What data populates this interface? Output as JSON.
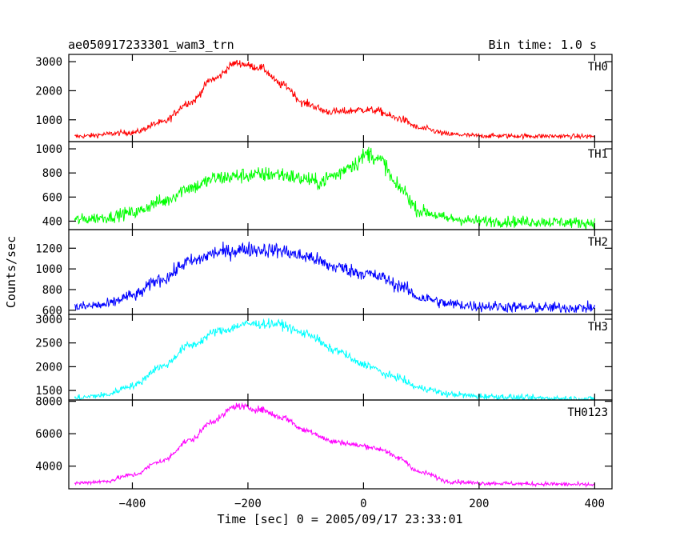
{
  "header": {
    "title": "ae050917233301_wam3_trn",
    "bin_time": "Bin time: 1.0 s"
  },
  "chart_data": {
    "type": "line",
    "xlabel": "Time [sec] 0 = 2005/09/17 23:33:01",
    "ylabel": "Counts/sec",
    "xlim": [
      -510,
      430
    ],
    "x_ticks": [
      -400,
      -200,
      0,
      200,
      400
    ],
    "x_tick_labels": [
      "−400",
      "−200",
      "0",
      "200",
      "400"
    ],
    "x_step": 1.0,
    "x_start": -500,
    "x_end": 400,
    "grid": false,
    "series": [
      {
        "name": "TH0",
        "color": "#ff0000",
        "ylim": [
          250,
          3250
        ],
        "y_ticks": [
          1000,
          2000,
          3000
        ],
        "noise_amplitude": 70,
        "profile": [
          [
            -500,
            430
          ],
          [
            -400,
            560
          ],
          [
            -350,
            900
          ],
          [
            -300,
            1600
          ],
          [
            -260,
            2400
          ],
          [
            -220,
            2950
          ],
          [
            -180,
            2800
          ],
          [
            -140,
            2200
          ],
          [
            -100,
            1550
          ],
          [
            -60,
            1280
          ],
          [
            -40,
            1280
          ],
          [
            0,
            1350
          ],
          [
            20,
            1320
          ],
          [
            60,
            1050
          ],
          [
            100,
            700
          ],
          [
            150,
            500
          ],
          [
            200,
            450
          ],
          [
            300,
            440
          ],
          [
            400,
            430
          ]
        ]
      },
      {
        "name": "TH1",
        "color": "#00ff00",
        "ylim": [
          330,
          1060
        ],
        "y_ticks": [
          400,
          600,
          800,
          1000
        ],
        "noise_amplitude": 40,
        "profile": [
          [
            -500,
            410
          ],
          [
            -450,
            430
          ],
          [
            -400,
            470
          ],
          [
            -350,
            560
          ],
          [
            -300,
            680
          ],
          [
            -250,
            760
          ],
          [
            -200,
            780
          ],
          [
            -150,
            790
          ],
          [
            -100,
            750
          ],
          [
            -80,
            720
          ],
          [
            -50,
            780
          ],
          [
            -20,
            870
          ],
          [
            10,
            960
          ],
          [
            30,
            900
          ],
          [
            60,
            680
          ],
          [
            100,
            480
          ],
          [
            150,
            420
          ],
          [
            200,
            400
          ],
          [
            300,
            395
          ],
          [
            400,
            385
          ]
        ]
      },
      {
        "name": "TH2",
        "color": "#0000ff",
        "ylim": [
          560,
          1380
        ],
        "y_ticks": [
          600,
          800,
          1000,
          1200
        ],
        "noise_amplitude": 45,
        "profile": [
          [
            -500,
            630
          ],
          [
            -450,
            650
          ],
          [
            -400,
            740
          ],
          [
            -350,
            900
          ],
          [
            -300,
            1070
          ],
          [
            -250,
            1160
          ],
          [
            -200,
            1190
          ],
          [
            -150,
            1180
          ],
          [
            -100,
            1120
          ],
          [
            -50,
            1020
          ],
          [
            0,
            960
          ],
          [
            30,
            920
          ],
          [
            60,
            840
          ],
          [
            100,
            720
          ],
          [
            150,
            660
          ],
          [
            200,
            640
          ],
          [
            300,
            625
          ],
          [
            400,
            625
          ]
        ]
      },
      {
        "name": "TH3",
        "color": "#00ffff",
        "ylim": [
          1300,
          3100
        ],
        "y_ticks": [
          1500,
          2000,
          2500,
          3000
        ],
        "noise_amplitude": 55,
        "profile": [
          [
            -500,
            1340
          ],
          [
            -450,
            1400
          ],
          [
            -400,
            1600
          ],
          [
            -350,
            2000
          ],
          [
            -300,
            2450
          ],
          [
            -250,
            2750
          ],
          [
            -200,
            2900
          ],
          [
            -150,
            2900
          ],
          [
            -100,
            2700
          ],
          [
            -50,
            2350
          ],
          [
            0,
            2050
          ],
          [
            50,
            1800
          ],
          [
            100,
            1550
          ],
          [
            150,
            1420
          ],
          [
            200,
            1380
          ],
          [
            300,
            1340
          ],
          [
            400,
            1320
          ]
        ]
      },
      {
        "name": "TH0123",
        "color": "#ff00ff",
        "ylim": [
          2600,
          8080
        ],
        "y_ticks": [
          4000,
          6000,
          8000
        ],
        "noise_amplitude": 110,
        "profile": [
          [
            -500,
            2950
          ],
          [
            -450,
            3050
          ],
          [
            -400,
            3450
          ],
          [
            -350,
            4300
          ],
          [
            -300,
            5600
          ],
          [
            -260,
            6800
          ],
          [
            -220,
            7700
          ],
          [
            -180,
            7500
          ],
          [
            -140,
            7000
          ],
          [
            -100,
            6200
          ],
          [
            -50,
            5500
          ],
          [
            0,
            5250
          ],
          [
            30,
            5050
          ],
          [
            60,
            4500
          ],
          [
            100,
            3600
          ],
          [
            150,
            3050
          ],
          [
            200,
            2950
          ],
          [
            300,
            2900
          ],
          [
            400,
            2850
          ]
        ]
      }
    ]
  }
}
